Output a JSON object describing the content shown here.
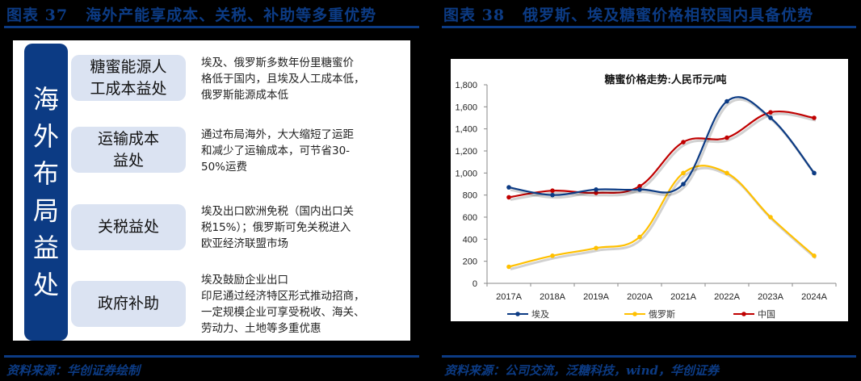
{
  "left_panel": {
    "figure_label": "图表 37",
    "title": "海外产能享成本、关税、补助等多重优势",
    "vertical_label": [
      "海",
      "外",
      "布",
      "局",
      "益",
      "处"
    ],
    "benefits": [
      {
        "label_lines": [
          "糖蜜能源人",
          "工成本益处"
        ],
        "desc_lines": [
          "埃及、俄罗斯多数年份里糖蜜价",
          "格低于国内，且埃及人工成本低，",
          "俄罗斯能源成本低"
        ]
      },
      {
        "label_lines": [
          "运输成本",
          "益处"
        ],
        "desc_lines": [
          "通过布局海外，大大缩短了运距",
          "和减少了运输成本，可节省30-",
          "50%运费"
        ]
      },
      {
        "label_lines": [
          "关税益处"
        ],
        "desc_lines": [
          "埃及出口欧洲免税（国内出口关",
          "税15%）；俄罗斯可免关税进入",
          "欧亚经济联盟市场"
        ]
      },
      {
        "label_lines": [
          "政府补助"
        ],
        "desc_lines": [
          "埃及鼓励企业出口",
          "印尼通过经济特区形式推动招商，",
          "一定规模企业可享受税收、海关、",
          "劳动力、土地等多重优惠"
        ]
      }
    ],
    "source": "资料来源：华创证券绘制"
  },
  "right_panel": {
    "figure_label": "图表 38",
    "title": "俄罗斯、埃及糖蜜价格相较国内具备优势",
    "source": "资料来源：公司交流，泛糖科技，wind，华创证券"
  },
  "chart_data": {
    "type": "line",
    "title": "糖蜜价格走势:人民币元/吨",
    "xlabel": "",
    "ylabel": "",
    "categories": [
      "2017A",
      "2018A",
      "2019A",
      "2020A",
      "2021A",
      "2022A",
      "2023A",
      "2024A"
    ],
    "ylim": [
      0,
      1800
    ],
    "yticks": [
      0,
      200,
      400,
      600,
      800,
      1000,
      1200,
      1400,
      1600,
      1800
    ],
    "ytick_labels": [
      "0",
      "200",
      "400",
      "600",
      "800",
      "1,000",
      "1,200",
      "1,400",
      "1,600",
      "1,800"
    ],
    "grid": false,
    "legend_position": "bottom",
    "series": [
      {
        "name": "埃及",
        "color": "#0c3b84",
        "values": [
          870,
          800,
          850,
          850,
          900,
          1650,
          1500,
          1000
        ]
      },
      {
        "name": "俄罗斯",
        "color": "#ffc000",
        "values": [
          150,
          250,
          320,
          420,
          1000,
          1000,
          600,
          250
        ]
      },
      {
        "name": "中国",
        "color": "#c00000",
        "values": [
          780,
          840,
          820,
          880,
          1280,
          1320,
          1550,
          1500
        ]
      }
    ]
  }
}
